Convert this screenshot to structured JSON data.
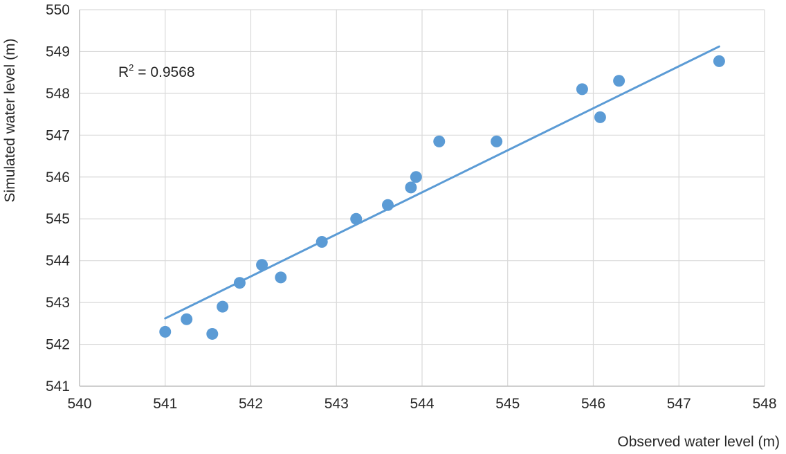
{
  "chart_data": {
    "type": "scatter",
    "xlabel": "Observed water level (m)",
    "ylabel": "Simulated water level (m)",
    "xlim": [
      540,
      548
    ],
    "ylim": [
      541,
      550
    ],
    "xticks": [
      "540",
      "541",
      "542",
      "543",
      "544",
      "545",
      "546",
      "547",
      "548"
    ],
    "yticks": [
      "541",
      "542",
      "543",
      "544",
      "545",
      "546",
      "547",
      "548",
      "549",
      "550"
    ],
    "grid": true,
    "marker_color": "#5b9bd5",
    "series": [
      {
        "points": [
          {
            "x": 541.0,
            "y": 542.3
          },
          {
            "x": 541.25,
            "y": 542.6
          },
          {
            "x": 541.55,
            "y": 542.25
          },
          {
            "x": 541.67,
            "y": 542.9
          },
          {
            "x": 541.87,
            "y": 543.47
          },
          {
            "x": 542.13,
            "y": 543.9
          },
          {
            "x": 542.35,
            "y": 543.6
          },
          {
            "x": 542.83,
            "y": 544.45
          },
          {
            "x": 543.23,
            "y": 545.0
          },
          {
            "x": 543.6,
            "y": 545.33
          },
          {
            "x": 543.87,
            "y": 545.75
          },
          {
            "x": 543.93,
            "y": 546.0
          },
          {
            "x": 544.2,
            "y": 546.85
          },
          {
            "x": 544.87,
            "y": 546.85
          },
          {
            "x": 545.87,
            "y": 548.1
          },
          {
            "x": 546.08,
            "y": 547.43
          },
          {
            "x": 546.3,
            "y": 548.3
          },
          {
            "x": 547.47,
            "y": 548.77
          }
        ]
      }
    ],
    "trendline": {
      "type": "linear",
      "from": {
        "x": 541.0,
        "y": 542.62
      },
      "to": {
        "x": 547.47,
        "y": 549.12
      },
      "color": "#5b9bd5"
    },
    "annotation": {
      "label_base": "R",
      "label_sup": "2",
      "label_rest": " = 0.9568"
    }
  }
}
